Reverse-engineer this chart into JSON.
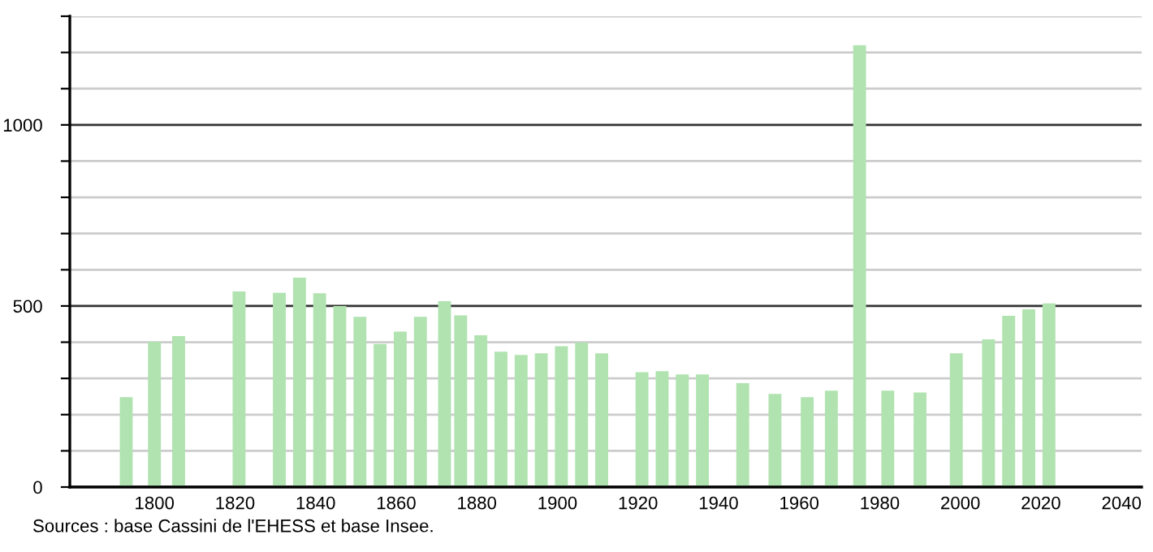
{
  "chart_data": {
    "type": "bar",
    "x": [
      1793,
      1800,
      1806,
      1821,
      1831,
      1836,
      1841,
      1846,
      1851,
      1856,
      1861,
      1866,
      1872,
      1876,
      1881,
      1886,
      1891,
      1896,
      1901,
      1906,
      1911,
      1921,
      1926,
      1931,
      1936,
      1946,
      1954,
      1962,
      1968,
      1975,
      1982,
      1990,
      1999,
      2007,
      2012,
      2017,
      2022
    ],
    "values": [
      248,
      401,
      417,
      540,
      536,
      578,
      535,
      500,
      470,
      395,
      429,
      470,
      513,
      474,
      419,
      374,
      365,
      369,
      389,
      399,
      369,
      317,
      320,
      311,
      311,
      287,
      257,
      248,
      266,
      1220,
      266,
      261,
      369,
      408,
      473,
      491,
      507
    ],
    "color": "#b0e3b0",
    "xlim": [
      1779,
      2045
    ],
    "xticks": [
      1800,
      1820,
      1840,
      1860,
      1880,
      1900,
      1920,
      1940,
      1960,
      1980,
      2000,
      2020,
      2040
    ],
    "ylim": [
      0,
      1300
    ],
    "yticks": [
      0,
      {
        "value": 100,
        "label": null
      },
      {
        "value": 200,
        "label": null
      },
      {
        "value": 300,
        "label": null
      },
      {
        "value": 400,
        "label": null
      },
      500,
      {
        "value": 600,
        "label": null
      },
      {
        "value": 700,
        "label": null
      },
      {
        "value": 800,
        "label": null
      },
      {
        "value": 900,
        "label": null
      },
      1000,
      {
        "value": 1100,
        "label": null
      },
      {
        "value": 1200,
        "label": null
      },
      {
        "value": 1300,
        "label": null
      }
    ],
    "grid": "y",
    "annotations": [
      "Sources : base Cassini de l'EHESS et base Insee."
    ]
  }
}
